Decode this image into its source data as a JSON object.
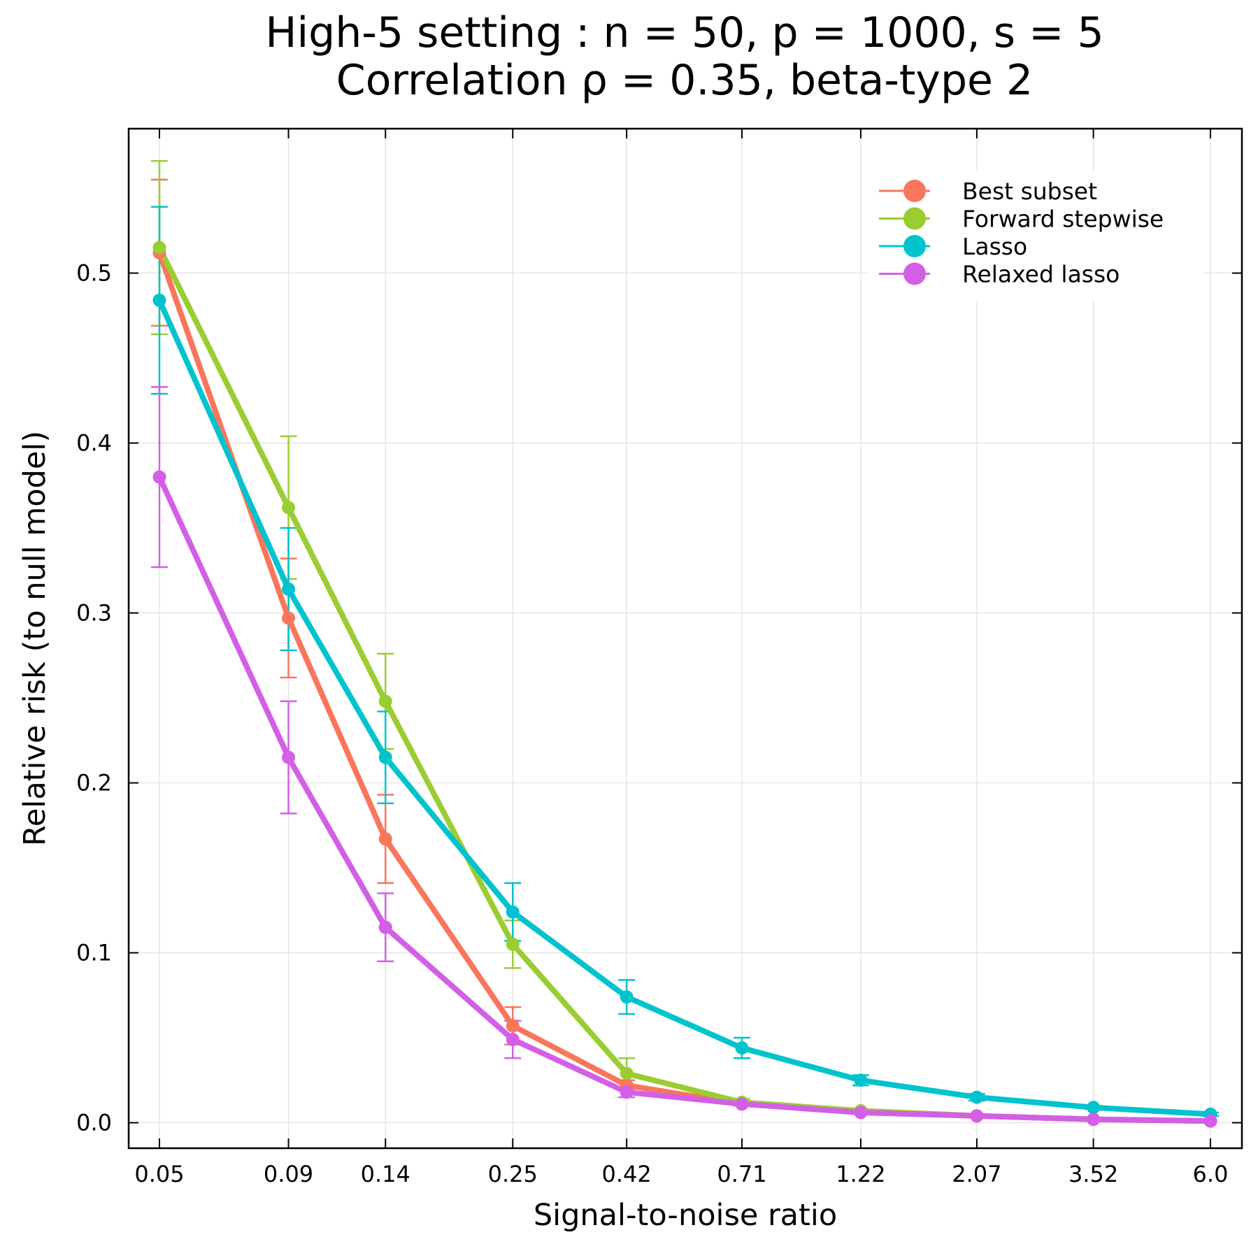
{
  "chart_data": {
    "type": "line",
    "title": [
      "High-5 setting : n = 50, p = 1000, s = 5",
      "Correlation ρ = 0.35, beta-type 2"
    ],
    "xlabel": "Signal-to-noise ratio",
    "ylabel": "Relative risk (to null model)",
    "x_scale": "log",
    "x": [
      0.05,
      0.09,
      0.14,
      0.25,
      0.42,
      0.71,
      1.22,
      2.07,
      3.52,
      6.0
    ],
    "x_tick_labels": [
      "0.05",
      "0.09",
      "0.14",
      "0.25",
      "0.42",
      "0.71",
      "1.22",
      "2.07",
      "3.52",
      "6.0"
    ],
    "ylim": [
      -0.015,
      0.585
    ],
    "y_ticks": [
      0.0,
      0.1,
      0.2,
      0.3,
      0.4,
      0.5
    ],
    "y_tick_labels": [
      "0.0",
      "0.1",
      "0.2",
      "0.3",
      "0.4",
      "0.5"
    ],
    "grid": true,
    "legend_position": "top-right",
    "series": [
      {
        "name": "Best subset",
        "color": "#f8765c",
        "values": [
          0.512,
          0.297,
          0.167,
          0.057,
          0.022,
          0.011,
          0.007,
          0.004,
          0.002,
          0.001
        ],
        "err": [
          0.043,
          0.035,
          0.026,
          0.011,
          0.003,
          0.001,
          0.001,
          0.0005,
          0.0003,
          0.0002
        ]
      },
      {
        "name": "Forward stepwise",
        "color": "#9acd32",
        "values": [
          0.515,
          0.362,
          0.248,
          0.105,
          0.029,
          0.012,
          0.007,
          0.004,
          0.002,
          0.001
        ],
        "err": [
          0.051,
          0.042,
          0.028,
          0.014,
          0.009,
          0.002,
          0.001,
          0.0005,
          0.0003,
          0.0002
        ]
      },
      {
        "name": "Lasso",
        "color": "#00c3cd",
        "values": [
          0.484,
          0.314,
          0.215,
          0.124,
          0.074,
          0.044,
          0.025,
          0.015,
          0.009,
          0.005
        ],
        "err": [
          0.055,
          0.036,
          0.027,
          0.017,
          0.01,
          0.006,
          0.003,
          0.002,
          0.001,
          0.001
        ]
      },
      {
        "name": "Relaxed lasso",
        "color": "#d35fe6",
        "values": [
          0.38,
          0.215,
          0.115,
          0.049,
          0.018,
          0.011,
          0.006,
          0.004,
          0.002,
          0.001
        ],
        "err": [
          0.053,
          0.033,
          0.02,
          0.011,
          0.003,
          0.001,
          0.001,
          0.0005,
          0.0003,
          0.0002
        ]
      }
    ]
  }
}
